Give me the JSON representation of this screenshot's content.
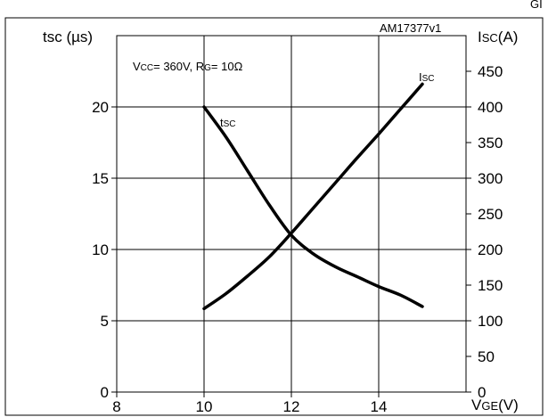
{
  "chart_data": {
    "type": "line",
    "figure_id": "AM17377v1",
    "corner_label": "GI",
    "conditions": {
      "vcc_main": "V",
      "vcc_sub": "CC",
      "vcc_value": "= 360V, ",
      "rg_main": "R",
      "rg_sub": "G",
      "rg_value": "= 10Ω"
    },
    "x_axis": {
      "label_main": "V",
      "label_sub": "GE",
      "label_unit": "(V)",
      "range": [
        8,
        16
      ],
      "ticks": [
        8,
        10,
        12,
        14
      ],
      "tick_labels": [
        "8",
        "10",
        "12",
        "14"
      ]
    },
    "y_left": {
      "label": "tsc (µs)",
      "range": [
        0,
        25
      ],
      "ticks": [
        0,
        5,
        10,
        15,
        20
      ],
      "tick_labels": [
        "0",
        "5",
        "10",
        "15",
        "20"
      ]
    },
    "y_right": {
      "label_main": "I",
      "label_sub": "SC",
      "label_unit": "(A)",
      "range": [
        0,
        500
      ],
      "ticks": [
        0,
        50,
        100,
        150,
        200,
        250,
        300,
        350,
        400,
        450
      ],
      "tick_labels": [
        "0",
        "50",
        "100",
        "150",
        "200",
        "250",
        "300",
        "350",
        "400",
        "450"
      ]
    },
    "grid": true,
    "series": [
      {
        "name_main": "t",
        "name_sub": "SC",
        "axis": "left",
        "x": [
          10,
          10.5,
          11,
          11.5,
          12,
          12.5,
          13,
          13.5,
          14,
          14.5,
          15
        ],
        "values": [
          20,
          17.9,
          15.5,
          13.1,
          11.0,
          9.7,
          8.8,
          8.1,
          7.4,
          6.8,
          6.0
        ]
      },
      {
        "name_main": "I",
        "name_sub": "SC",
        "axis": "right",
        "x": [
          10,
          10.5,
          11,
          11.5,
          12,
          12.5,
          13,
          13.5,
          14,
          14.5,
          15
        ],
        "values": [
          117,
          138,
          163,
          190,
          223,
          258,
          293,
          328,
          362,
          397,
          432
        ]
      }
    ]
  }
}
